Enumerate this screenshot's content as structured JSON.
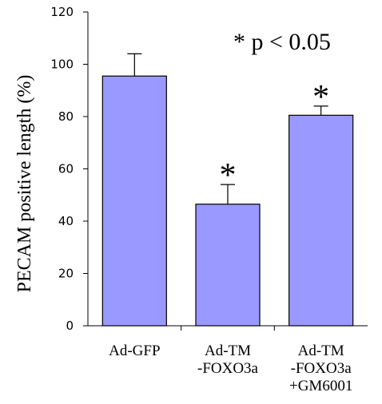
{
  "chart_data": {
    "type": "bar",
    "categories": [
      [
        "Ad-GFP"
      ],
      [
        "Ad-TM",
        "-FOXO3a"
      ],
      [
        "Ad-TM",
        "-FOXO3a",
        "+GM6001"
      ]
    ],
    "values": [
      95.5,
      46.5,
      80.5
    ],
    "errors": [
      8.5,
      7.5,
      3.5
    ],
    "significance": [
      "",
      "*",
      "*"
    ],
    "ylabel": "PECAM positive length (%)",
    "ylim": [
      0,
      120
    ],
    "yticks": [
      0,
      20,
      40,
      60,
      80,
      100,
      120
    ],
    "annotation": "* p < 0.05",
    "colors": {
      "bar": "#9999ff",
      "stroke": "#000000"
    }
  }
}
